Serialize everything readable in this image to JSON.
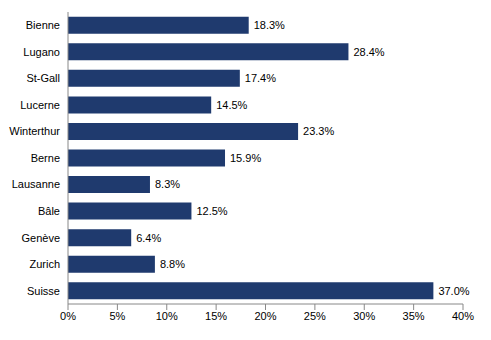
{
  "chart_data": {
    "type": "bar",
    "orientation": "horizontal",
    "categories": [
      "Bienne",
      "Lugano",
      "St-Gall",
      "Lucerne",
      "Winterthur",
      "Berne",
      "Lausanne",
      "Bâle",
      "Genève",
      "Zurich",
      "Suisse"
    ],
    "values": [
      18.3,
      28.4,
      17.4,
      14.5,
      23.3,
      15.9,
      8.3,
      12.5,
      6.4,
      8.8,
      37.0
    ],
    "value_labels": [
      "18.3%",
      "28.4%",
      "17.4%",
      "14.5%",
      "23.3%",
      "15.9%",
      "8.3%",
      "12.5%",
      "6.4%",
      "8.8%",
      "37.0%"
    ],
    "color": "#1f3a6e",
    "xlim": [
      0,
      40
    ],
    "xticks": [
      {
        "value": 0,
        "label": "0%"
      },
      {
        "value": 5,
        "label": "5%"
      },
      {
        "value": 10,
        "label": "10%"
      },
      {
        "value": 15,
        "label": "15%"
      },
      {
        "value": 20,
        "label": "20%"
      },
      {
        "value": 25,
        "label": "25%"
      },
      {
        "value": 30,
        "label": "30%"
      },
      {
        "value": 35,
        "label": "35%"
      },
      {
        "value": 40,
        "label": "40%"
      }
    ],
    "grid": false,
    "data_labels": true
  }
}
